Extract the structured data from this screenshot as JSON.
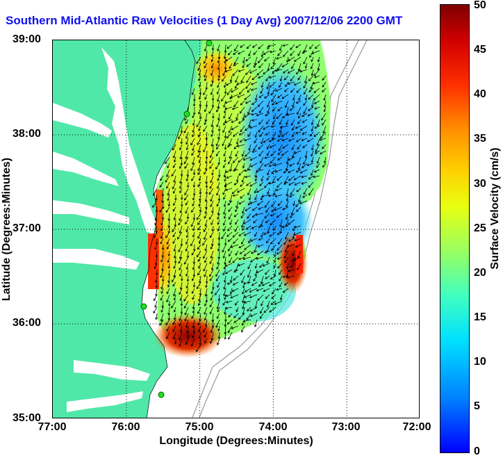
{
  "title": "Southern Mid-Atlantic Raw Velocities (1 Day Avg) 2007/12/06 2200 GMT",
  "xlabel": "Longitude (Degrees:Minutes)",
  "ylabel": "Latitude (Degrees:Minutes)",
  "x_ticks": [
    "77:00",
    "76:00",
    "75:00",
    "74:00",
    "73:00",
    "72:00"
  ],
  "y_ticks": [
    "39:00",
    "38:00",
    "37:00",
    "36:00",
    "35:00"
  ],
  "colorbar": {
    "label": "Surface Velocity (cm/s)",
    "ticks": [
      "50",
      "45",
      "40",
      "35",
      "30",
      "25",
      "20",
      "15",
      "10",
      "5",
      "0"
    ],
    "range": [
      0,
      50
    ]
  },
  "map": {
    "lon_range": [
      -77,
      -72
    ],
    "lat_range": [
      35,
      39
    ],
    "land_color": "#50e8a8",
    "water_color": "#ffffff",
    "grid": "dotted"
  },
  "stations": [
    "site-1",
    "site-2",
    "site-3",
    "site-4"
  ]
}
